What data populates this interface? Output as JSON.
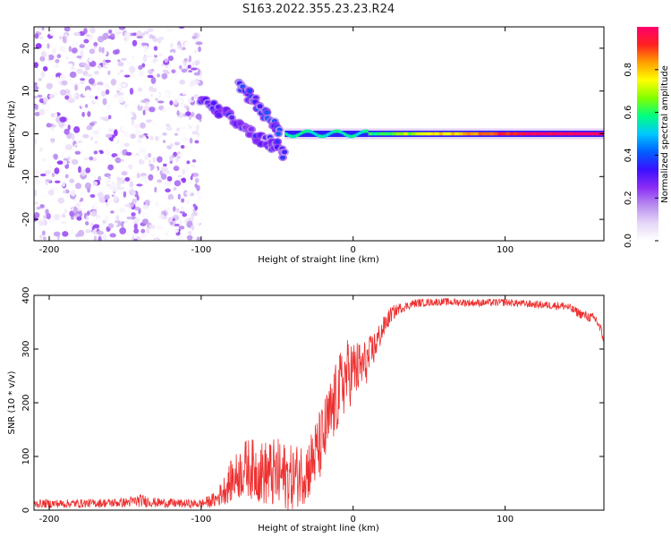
{
  "figure_title": "S163.2022.355.23.23.R24",
  "colors": {
    "snr_line": "#ee3030",
    "colormap": [
      "#ffffff",
      "#e6d6f7",
      "#b88cf0",
      "#8a2bf5",
      "#3a10ff",
      "#0060ff",
      "#00c8ff",
      "#00ff80",
      "#80ff00",
      "#ffff00",
      "#ffa000",
      "#ff2020",
      "#ff006e"
    ]
  },
  "chart_data": [
    {
      "type": "heatmap",
      "title": "",
      "xlabel": "Height of straight line (km)",
      "ylabel": "Frequency (Hz)",
      "xlim": [
        -210,
        165
      ],
      "ylim": [
        -25,
        25
      ],
      "xticks": [
        -200,
        -100,
        0,
        100
      ],
      "xtick_labels": [
        "-200",
        "-100",
        "0",
        "100"
      ],
      "yticks": [
        -20,
        -10,
        0,
        10,
        20
      ],
      "ytick_labels": [
        "-20",
        "-10",
        "0",
        "10",
        "20"
      ],
      "grid": false,
      "colorbar": {
        "label": "Normalized spectral amplitude",
        "range": [
          0,
          1
        ],
        "ticks": [
          0.0,
          0.2,
          0.4,
          0.6,
          0.8
        ],
        "tick_labels": [
          "0.0",
          "0.2",
          "0.4",
          "0.6",
          "0.8"
        ]
      },
      "features": [
        {
          "description": "scattered noise blobs",
          "x_range": [
            -210,
            -100
          ],
          "freq_range": [
            -25,
            25
          ],
          "amplitude": [
            0.0,
            0.25
          ]
        },
        {
          "description": "descending streak",
          "points": [
            [
              -100,
              8
            ],
            [
              -85,
              5
            ],
            [
              -70,
              1
            ],
            [
              -55,
              -2
            ],
            [
              -45,
              -5
            ]
          ],
          "amplitude": 0.3
        },
        {
          "description": "second descending streak",
          "points": [
            [
              -75,
              11
            ],
            [
              -65,
              8
            ],
            [
              -55,
              4
            ],
            [
              -48,
              -1
            ]
          ],
          "amplitude": 0.35
        },
        {
          "description": "oscillating band near 0 Hz",
          "x_range": [
            -45,
            10
          ],
          "freq": 0,
          "amplitude": 0.55
        },
        {
          "description": "steady line at 0 Hz",
          "x_range": [
            10,
            165
          ],
          "freq": 0,
          "amplitude": [
            0.6,
            1.0
          ]
        }
      ]
    },
    {
      "type": "line",
      "title": "",
      "xlabel": "Height of straight line (km)",
      "ylabel": "SNR (10 * v/v)",
      "xlim": [
        -210,
        165
      ],
      "ylim": [
        0,
        400
      ],
      "xticks": [
        -200,
        -100,
        0,
        100
      ],
      "xtick_labels": [
        "-200",
        "-100",
        "0",
        "100"
      ],
      "yticks": [
        0,
        100,
        200,
        300,
        400
      ],
      "ytick_labels": [
        "0",
        "100",
        "200",
        "300",
        "400"
      ],
      "grid": false,
      "series": [
        {
          "name": "",
          "x": [
            -210,
            -190,
            -170,
            -150,
            -140,
            -130,
            -110,
            -100,
            -90,
            -80,
            -70,
            -60,
            -50,
            -40,
            -30,
            -20,
            -15,
            -10,
            -5,
            0,
            5,
            10,
            15,
            20,
            25,
            30,
            35,
            40,
            50,
            60,
            80,
            100,
            120,
            140,
            150,
            160,
            165
          ],
          "y": [
            12,
            12,
            13,
            14,
            18,
            14,
            12,
            12,
            20,
            55,
            80,
            70,
            65,
            60,
            75,
            130,
            175,
            215,
            250,
            260,
            265,
            280,
            310,
            340,
            365,
            375,
            380,
            385,
            387,
            388,
            386,
            387,
            383,
            380,
            365,
            355,
            320
          ],
          "spread": [
            8,
            8,
            8,
            9,
            12,
            9,
            8,
            8,
            15,
            40,
            55,
            60,
            70,
            60,
            60,
            70,
            70,
            70,
            70,
            60,
            50,
            40,
            30,
            20,
            15,
            10,
            8,
            8,
            7,
            7,
            7,
            7,
            7,
            8,
            9,
            10,
            12
          ]
        }
      ]
    }
  ]
}
